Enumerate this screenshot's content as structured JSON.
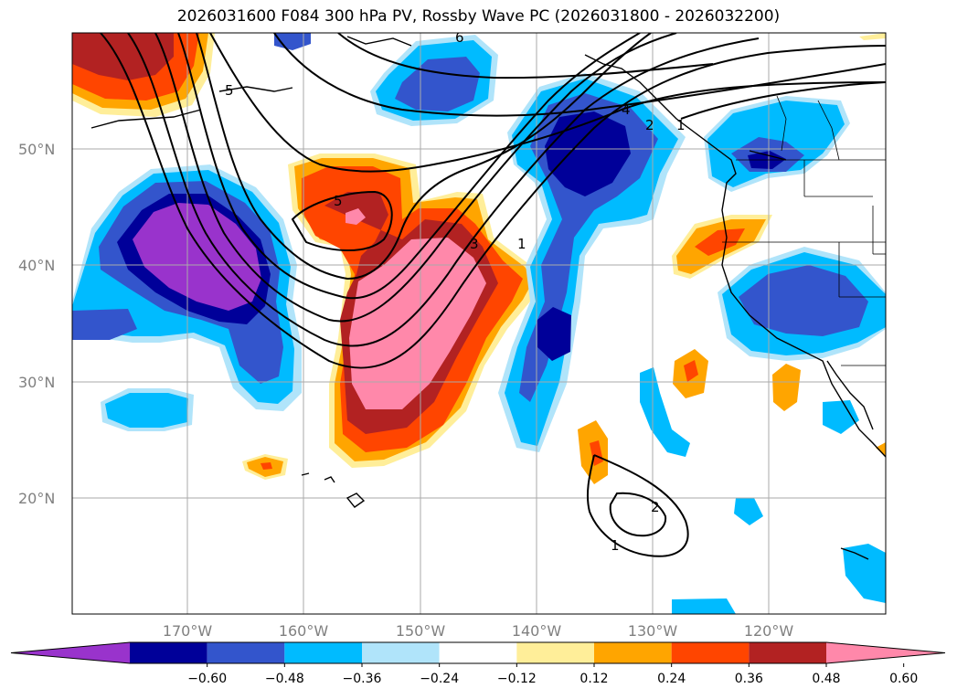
{
  "title": "2026031600 F084 300 hPa PV, Rossby Wave PC (2026031800 - 2026032200)",
  "map": {
    "lat_labels": [
      "50°N",
      "40°N",
      "30°N",
      "20°N"
    ],
    "lon_labels": [
      "170°W",
      "160°W",
      "150°W",
      "140°W",
      "130°W",
      "120°W"
    ],
    "contour_labels": [
      "5",
      "5",
      "5",
      "3",
      "1",
      "6",
      "4",
      "2",
      "1",
      "2",
      "1"
    ]
  },
  "colorbar": {
    "colors": [
      "#9933cc",
      "#000099",
      "#3355cc",
      "#00bbff",
      "#b0e4fa",
      "#ffffff",
      "#ffee99",
      "#ffa500",
      "#ff4500",
      "#b22222",
      "#ff88aa"
    ],
    "tick_labels": [
      "−0.60",
      "−0.48",
      "−0.36",
      "−0.24",
      "−0.12",
      "0.12",
      "0.24",
      "0.36",
      "0.48",
      "0.60"
    ]
  }
}
